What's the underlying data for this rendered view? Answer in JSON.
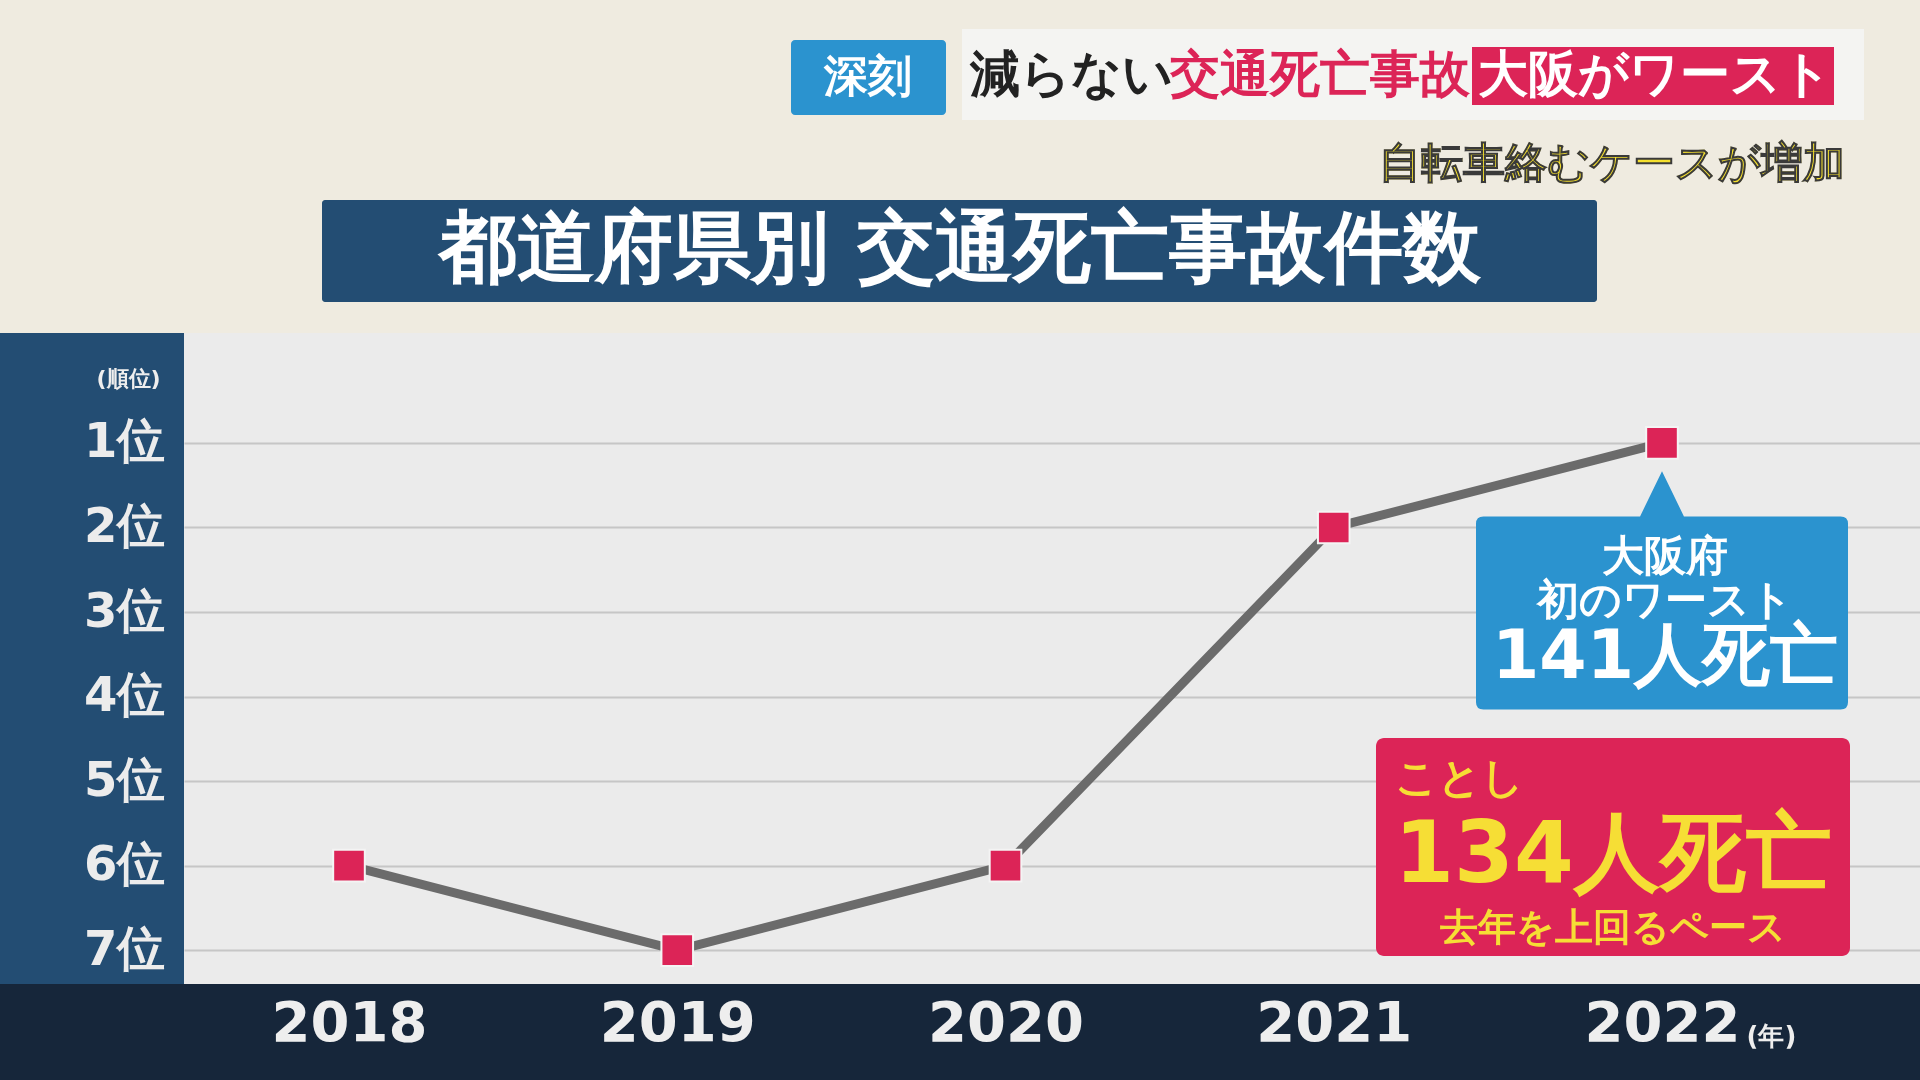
{
  "chart_data": {
    "type": "line",
    "title": "都道府県別 交通死亡事故件数",
    "subtitle": "自転車絡むケースが増加",
    "ylabel": "(順位)",
    "xlabel": "(年)",
    "categories": [
      "2018",
      "2019",
      "2020",
      "2021",
      "2022"
    ],
    "series": [
      {
        "color": "#6b6b6b",
        "colors": [
          "#dc2457",
          "#dc2457",
          "#dc2457",
          "#dc2457",
          "#dc2457"
        ],
        "values": [
          6,
          7,
          6,
          2,
          1
        ]
      }
    ],
    "ylim": [
      7.4,
      -0.3
    ],
    "yticks": [
      {
        "value": 1,
        "label": "1位"
      },
      {
        "value": 2,
        "label": "2位"
      },
      {
        "value": 3,
        "label": "3位"
      },
      {
        "value": 4,
        "label": "4位"
      },
      {
        "value": 5,
        "label": "5位"
      },
      {
        "value": 6,
        "label": "6位"
      },
      {
        "value": 7,
        "label": "7位"
      }
    ],
    "grid": "y",
    "marker": "square",
    "line_style": "solid",
    "annotations": [
      "深刻",
      "減らない",
      "交通死亡事故",
      "大阪がワースト",
      {
        "text": "大阪府",
        "x": "2022",
        "y": 1
      },
      "初のワースト",
      "141人死亡",
      "ことし",
      "134人死亡",
      "去年を上回るペース"
    ]
  }
}
